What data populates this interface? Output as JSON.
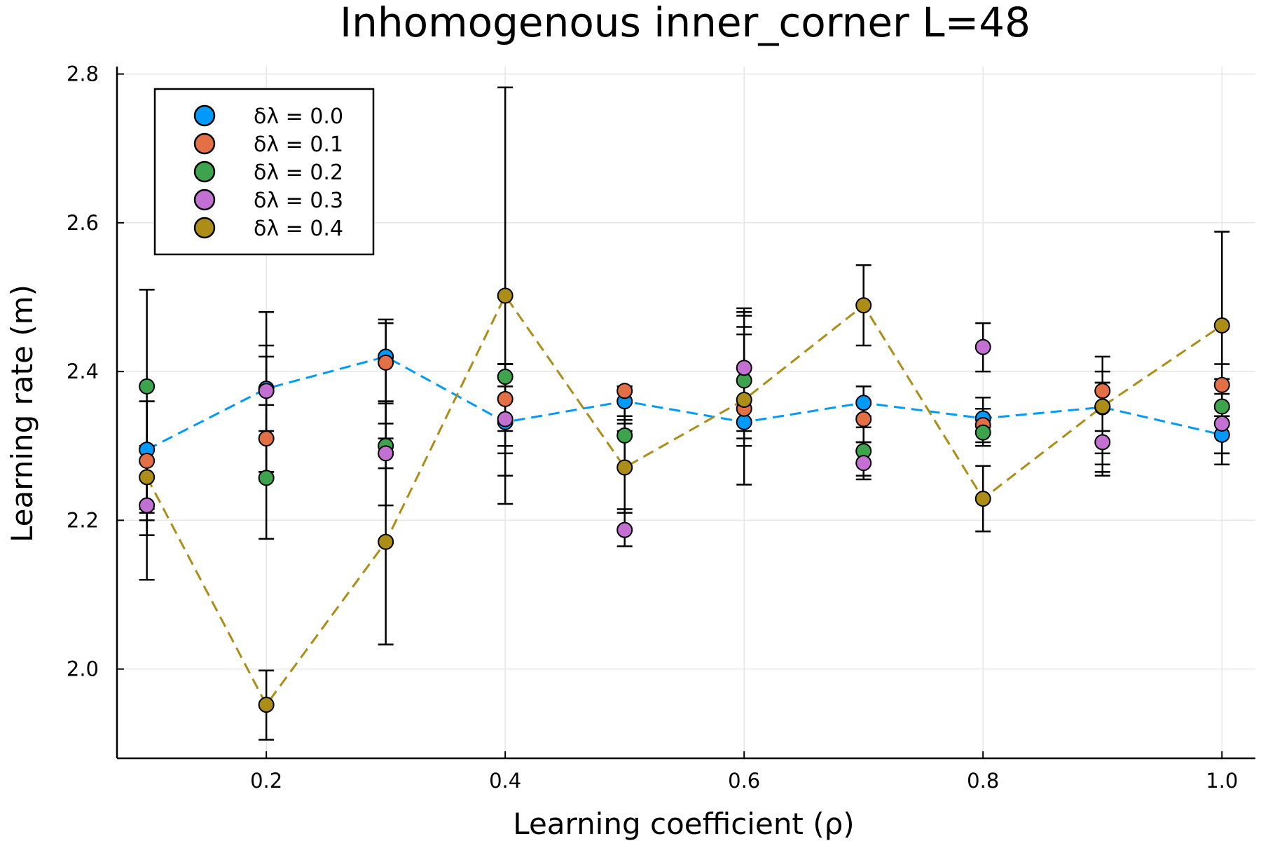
{
  "chart_data": {
    "type": "scatter",
    "title": "Inhomogenous inner_corner L=48",
    "xlabel": "Learning coefficient (ρ)",
    "ylabel": "Learning rate (m)",
    "xlim": [
      0.075,
      1.028
    ],
    "ylim": [
      1.88,
      2.81
    ],
    "xticks": [
      0.2,
      0.4,
      0.6,
      0.8,
      1.0
    ],
    "xtick_labels": [
      "0.2",
      "0.4",
      "0.6",
      "0.8",
      "1.0"
    ],
    "yticks": [
      2.0,
      2.2,
      2.4,
      2.6,
      2.8
    ],
    "ytick_labels": [
      "2.0",
      "2.2",
      "2.4",
      "2.6",
      "2.8"
    ],
    "grid": true,
    "legend_position": "top-left",
    "x": [
      0.1,
      0.2,
      0.3,
      0.4,
      0.5,
      0.6,
      0.7,
      0.8,
      0.9,
      1.0
    ],
    "series": [
      {
        "name": "δλ = 0.0",
        "color": "#009AFA",
        "line": true,
        "values": [
          2.295,
          2.377,
          2.42,
          2.332,
          2.36,
          2.332,
          2.358,
          2.337,
          2.352,
          2.315
        ],
        "err_low": [
          2.18,
          2.265,
          2.36,
          2.26,
          2.335,
          2.31,
          2.325,
          2.3,
          2.265,
          2.29
        ],
        "err_high": [
          2.36,
          2.48,
          2.47,
          2.41,
          2.38,
          2.45,
          2.38,
          2.365,
          2.4,
          2.34
        ]
      },
      {
        "name": "δλ = 0.1",
        "color": "#E26F46",
        "line": false,
        "values": [
          2.28,
          2.31,
          2.412,
          2.363,
          2.374,
          2.35,
          2.336,
          2.328,
          2.374,
          2.382
        ],
        "err_low": [
          2.21,
          2.265,
          2.33,
          2.3,
          2.32,
          2.3,
          2.305,
          2.305,
          2.29,
          2.34
        ],
        "err_high": [
          2.36,
          2.355,
          2.465,
          2.41,
          2.38,
          2.48,
          2.36,
          2.35,
          2.42,
          2.41
        ]
      },
      {
        "name": "δλ = 0.2",
        "color": "#3DA44D",
        "line": false,
        "values": [
          2.38,
          2.257,
          2.3,
          2.393,
          2.314,
          2.388,
          2.293,
          2.318,
          2.353,
          2.353
        ],
        "err_low": [
          2.12,
          2.175,
          2.27,
          2.32,
          2.27,
          2.33,
          2.26,
          2.3,
          2.275,
          2.275
        ],
        "err_high": [
          2.51,
          2.435,
          2.36,
          2.41,
          2.34,
          2.46,
          2.34,
          2.35,
          2.385,
          2.39
        ]
      },
      {
        "name": "δλ = 0.3",
        "color": "#C271D2",
        "line": false,
        "values": [
          2.22,
          2.374,
          2.29,
          2.336,
          2.187,
          2.405,
          2.277,
          2.433,
          2.305,
          2.33
        ],
        "err_low": [
          2.2,
          2.32,
          2.22,
          2.29,
          2.165,
          2.32,
          2.255,
          2.4,
          2.26,
          2.29
        ],
        "err_high": [
          2.26,
          2.42,
          2.357,
          2.38,
          2.215,
          2.485,
          2.305,
          2.465,
          2.35,
          2.37
        ]
      },
      {
        "name": "δλ = 0.4",
        "color": "#AC8D18",
        "line": true,
        "values": [
          2.258,
          1.952,
          2.171,
          2.502,
          2.271,
          2.362,
          2.489,
          2.229,
          2.353,
          2.462
        ],
        "err_low": [
          2.215,
          1.905,
          2.033,
          2.222,
          2.21,
          2.248,
          2.435,
          2.185,
          2.32,
          2.35
        ],
        "err_high": [
          2.3,
          1.998,
          2.31,
          2.782,
          2.33,
          2.475,
          2.543,
          2.273,
          2.385,
          2.588
        ]
      }
    ]
  }
}
